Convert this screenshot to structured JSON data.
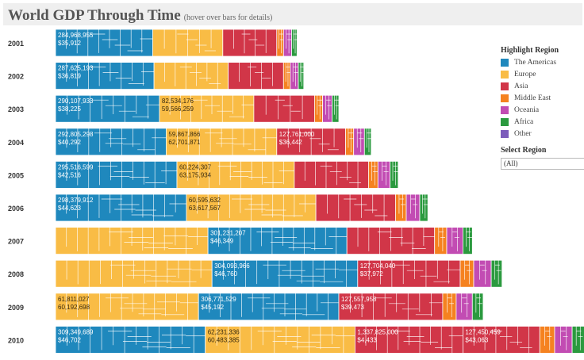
{
  "header": {
    "title": "World GDP Through Time",
    "subtitle": "(hover over bars for details)"
  },
  "legend": {
    "title": "Highlight Region",
    "items": [
      {
        "label": "The Americas",
        "color": "#1f88bd"
      },
      {
        "label": "Europe",
        "color": "#f9bc45"
      },
      {
        "label": "Asia",
        "color": "#d13648"
      },
      {
        "label": "Middle East",
        "color": "#f58220"
      },
      {
        "label": "Oceania",
        "color": "#c24cb3"
      },
      {
        "label": "Africa",
        "color": "#2b9a3f"
      },
      {
        "label": "Other",
        "color": "#7c5cbb"
      }
    ]
  },
  "filter": {
    "title": "Select Region",
    "value": "(All)"
  },
  "chart_data": {
    "type": "bar",
    "title": "World GDP Through Time",
    "categories": [
      "2001",
      "2002",
      "2003",
      "2004",
      "2005",
      "2006",
      "2007",
      "2008",
      "2009",
      "2010"
    ],
    "series": [
      {
        "name": "The Americas",
        "values": [
          284968955,
          287625193,
          290107933,
          292805298,
          295516599,
          298379912,
          301231207,
          304093966,
          306771529,
          309349689
        ]
      },
      {
        "name": "Europe",
        "values": [
          null,
          null,
          82534176,
          59867866,
          60224307,
          60595632,
          null,
          null,
          61811027,
          62231336
        ]
      },
      {
        "name": "Asia",
        "values": [
          null,
          null,
          null,
          127761000,
          null,
          null,
          null,
          127704040,
          127557958,
          1337825000
        ]
      },
      {
        "name": "Middle East",
        "values": [
          null,
          null,
          null,
          null,
          null,
          null,
          null,
          null,
          null,
          null
        ]
      },
      {
        "name": "Oceania",
        "values": [
          null,
          null,
          null,
          null,
          null,
          null,
          null,
          null,
          null,
          null
        ]
      },
      {
        "name": "Africa",
        "values": [
          null,
          null,
          null,
          null,
          null,
          null,
          null,
          null,
          null,
          null
        ]
      },
      {
        "name": "Other",
        "values": [
          null,
          null,
          null,
          null,
          null,
          null,
          null,
          null,
          null,
          null
        ]
      }
    ],
    "bars": [
      {
        "year": "2001",
        "segments": [
          {
            "region": "The Americas",
            "value": 72.0,
            "labels": [
              "284,968,955",
              "$35,912"
            ]
          },
          {
            "region": "Europe",
            "value": 52.0,
            "labels": []
          },
          {
            "region": "Asia",
            "value": 40.0,
            "labels": []
          },
          {
            "region": "Middle East",
            "value": 5.0,
            "labels": []
          },
          {
            "region": "Oceania",
            "value": 6.0,
            "labels": []
          },
          {
            "region": "Africa",
            "value": 4.0,
            "labels": []
          }
        ]
      },
      {
        "year": "2002",
        "segments": [
          {
            "region": "The Americas",
            "value": 73.0,
            "labels": [
              "287,625,193",
              "$36,819"
            ]
          },
          {
            "region": "Europe",
            "value": 55.0,
            "labels": []
          },
          {
            "region": "Asia",
            "value": 41.0,
            "labels": []
          },
          {
            "region": "Middle East",
            "value": 5.0,
            "labels": []
          },
          {
            "region": "Oceania",
            "value": 6.0,
            "labels": []
          },
          {
            "region": "Africa",
            "value": 4.0,
            "labels": []
          }
        ]
      },
      {
        "year": "2003",
        "segments": [
          {
            "region": "The Americas",
            "value": 77.0,
            "labels": [
              "290,107,933",
              "$38,225"
            ]
          },
          {
            "region": "Europe",
            "value": 70.0,
            "labels": [
              "82,534,176",
              "59,566,259"
            ]
          },
          {
            "region": "Asia",
            "value": 45.0,
            "labels": []
          },
          {
            "region": "Middle East",
            "value": 6.0,
            "labels": []
          },
          {
            "region": "Oceania",
            "value": 7.0,
            "labels": []
          },
          {
            "region": "Africa",
            "value": 5.0,
            "labels": []
          }
        ]
      },
      {
        "year": "2004",
        "segments": [
          {
            "region": "The Americas",
            "value": 82.0,
            "labels": [
              "292,805,298",
              "$40,292"
            ]
          },
          {
            "region": "Europe",
            "value": 82.0,
            "labels": [
              "59,867,866",
              "62,701,871"
            ]
          },
          {
            "region": "Asia",
            "value": 51.0,
            "labels": [
              "127,761,000",
              "$36,442"
            ]
          },
          {
            "region": "Middle East",
            "value": 6.0,
            "labels": []
          },
          {
            "region": "Oceania",
            "value": 8.0,
            "labels": []
          },
          {
            "region": "Africa",
            "value": 5.0,
            "labels": []
          }
        ]
      },
      {
        "year": "2005",
        "segments": [
          {
            "region": "The Americas",
            "value": 90.0,
            "labels": [
              "295,516,599",
              "$42,516"
            ]
          },
          {
            "region": "Europe",
            "value": 87.0,
            "labels": [
              "60,224,307",
              "63,175,934"
            ]
          },
          {
            "region": "Asia",
            "value": 55.0,
            "labels": []
          },
          {
            "region": "Middle East",
            "value": 7.0,
            "labels": []
          },
          {
            "region": "Oceania",
            "value": 9.0,
            "labels": []
          },
          {
            "region": "Africa",
            "value": 6.0,
            "labels": []
          }
        ]
      },
      {
        "year": "2006",
        "segments": [
          {
            "region": "The Americas",
            "value": 97.0,
            "labels": [
              "298,379,912",
              "$44,623"
            ]
          },
          {
            "region": "Europe",
            "value": 96.0,
            "labels": [
              "60,595,632",
              "63,617,567"
            ]
          },
          {
            "region": "Asia",
            "value": 59.0,
            "labels": []
          },
          {
            "region": "Middle East",
            "value": 8.0,
            "labels": []
          },
          {
            "region": "Oceania",
            "value": 10.0,
            "labels": []
          },
          {
            "region": "Africa",
            "value": 6.0,
            "labels": []
          }
        ]
      },
      {
        "year": "2007",
        "segments": [
          {
            "region": "Europe",
            "value": 113.0,
            "labels": []
          },
          {
            "region": "The Americas",
            "value": 103.0,
            "labels": [
              "301,231,207",
              "$46,349"
            ]
          },
          {
            "region": "Asia",
            "value": 65.0,
            "labels": []
          },
          {
            "region": "Middle East",
            "value": 9.0,
            "labels": []
          },
          {
            "region": "Oceania",
            "value": 12.0,
            "labels": []
          },
          {
            "region": "Africa",
            "value": 7.0,
            "labels": []
          }
        ]
      },
      {
        "year": "2008",
        "segments": [
          {
            "region": "Europe",
            "value": 116.0,
            "labels": []
          },
          {
            "region": "The Americas",
            "value": 108.0,
            "labels": [
              "304,093,966",
              "$46,760"
            ]
          },
          {
            "region": "Asia",
            "value": 76.0,
            "labels": [
              "127,704,040",
              "$37,972"
            ]
          },
          {
            "region": "Middle East",
            "value": 10.0,
            "labels": []
          },
          {
            "region": "Oceania",
            "value": 13.0,
            "labels": []
          },
          {
            "region": "Africa",
            "value": 8.0,
            "labels": []
          }
        ]
      },
      {
        "year": "2009",
        "segments": [
          {
            "region": "Europe",
            "value": 106.0,
            "labels": [
              "61,811,027",
              "60,192,698"
            ]
          },
          {
            "region": "The Americas",
            "value": 104.0,
            "labels": [
              "306,771,529",
              "$45,192"
            ]
          },
          {
            "region": "Asia",
            "value": 77.0,
            "labels": [
              "127,557,958",
              "$39,473"
            ]
          },
          {
            "region": "Middle East",
            "value": 10.0,
            "labels": []
          },
          {
            "region": "Oceania",
            "value": 12.0,
            "labels": []
          },
          {
            "region": "Africa",
            "value": 8.0,
            "labels": []
          }
        ]
      },
      {
        "year": "2010",
        "segments": [
          {
            "region": "The Americas",
            "value": 111.0,
            "labels": [
              "309,349,689",
              "$46,702"
            ]
          },
          {
            "region": "Europe",
            "value": 111.0,
            "labels": [
              "62,231,336",
              "60,483,385"
            ]
          },
          {
            "region": "Asia",
            "value": 80.0,
            "labels": [
              "1,337,825,000",
              "$4,433"
            ]
          },
          {
            "region": "Asia",
            "value": 57.0,
            "labels": [
              "127,450,459",
              "$43,063"
            ]
          },
          {
            "region": "Middle East",
            "value": 11.0,
            "labels": []
          },
          {
            "region": "Oceania",
            "value": 13.0,
            "labels": []
          },
          {
            "region": "Africa",
            "value": 9.0,
            "labels": []
          }
        ]
      }
    ]
  }
}
